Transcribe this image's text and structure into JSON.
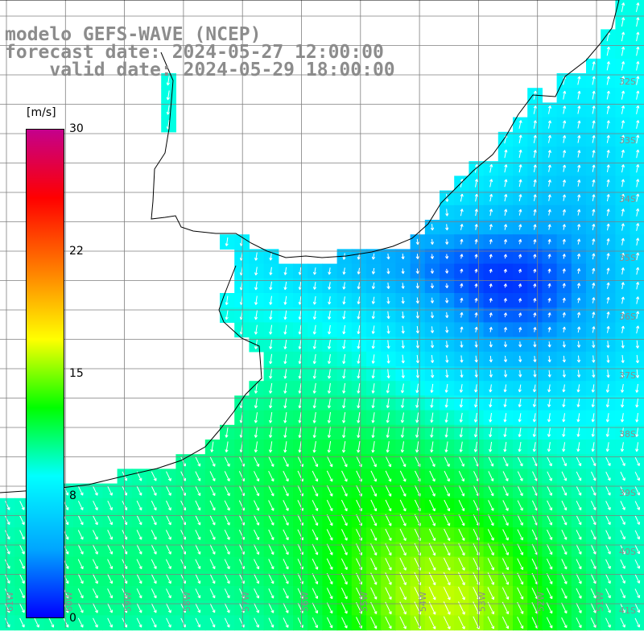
{
  "title": {
    "model": "modelo GEFS-WAVE (NCEP)",
    "forecast_date": "forecast date: 2024-05-27 12:00:00",
    "valid_date": "    valid date: 2024-05-29 18:00:00"
  },
  "colorbar": {
    "unit": "[m/s]",
    "ticks": [
      "30",
      "22",
      "15",
      "8",
      "0"
    ],
    "tick_values": [
      30,
      22,
      15,
      8,
      0
    ],
    "stops": [
      "#0000ff",
      "#00a6ff",
      "#00ffff",
      "#00ff00",
      "#ffff00",
      "#ff8000",
      "#ff0000",
      "#c4008c"
    ]
  },
  "lat_labels": [
    "32S",
    "33S",
    "34S",
    "35S",
    "36S",
    "37S",
    "38S",
    "39S",
    "40S",
    "41S"
  ],
  "lon_labels": [
    "61W",
    "60W",
    "59W",
    "58W",
    "57W",
    "56W",
    "55W",
    "54W",
    "53W",
    "52W",
    "51W"
  ],
  "colors": {
    "land": "#ffffff",
    "coast": "#000000",
    "grid": "#7f7f7f",
    "arrows": "#ffffff",
    "label_text": "#8c8c8c"
  }
}
